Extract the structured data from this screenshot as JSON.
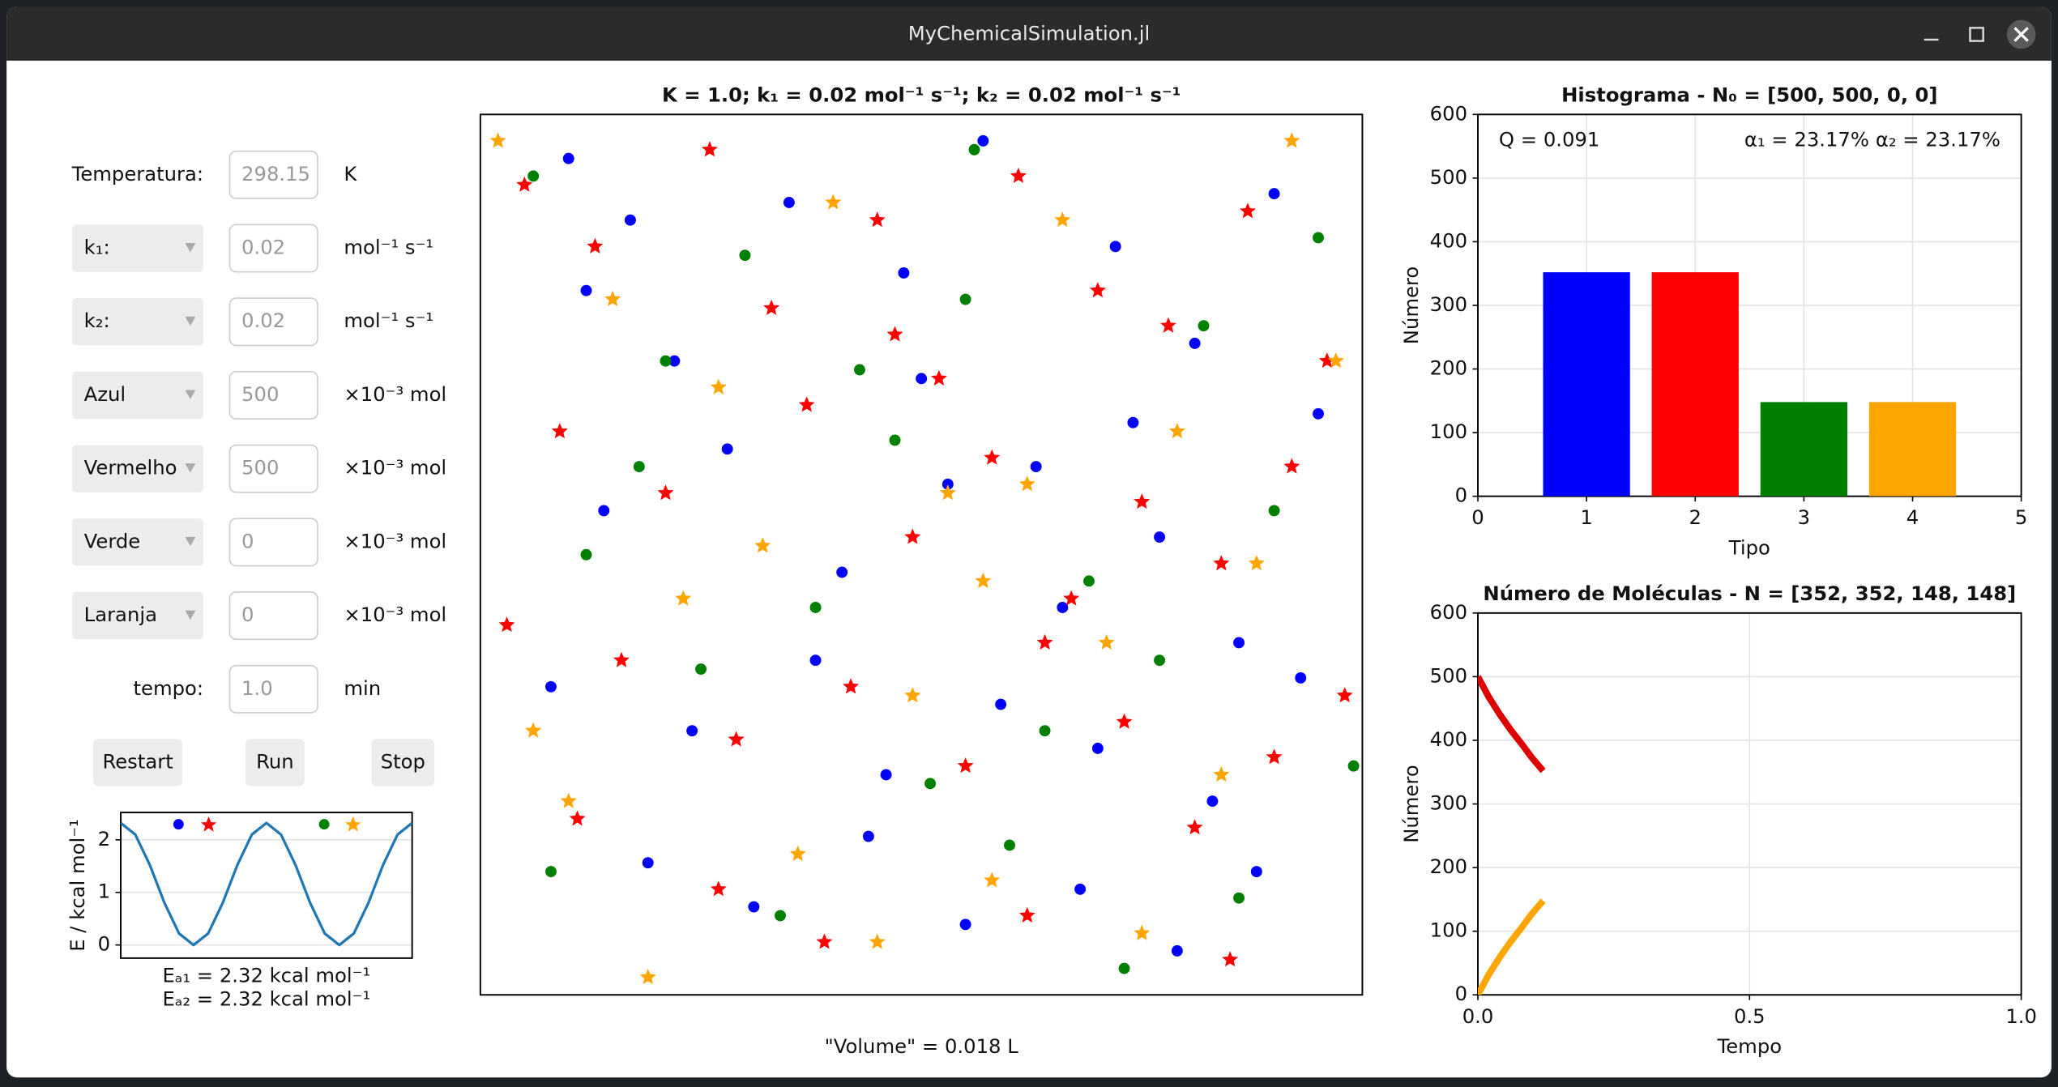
{
  "window": {
    "title": "MyChemicalSimulation.jl"
  },
  "controls": {
    "rows": [
      {
        "label": "Temperatura:",
        "value": "298.15",
        "unit": "K",
        "dropdown": false
      },
      {
        "label": "k₁:",
        "value": "0.02",
        "unit": "mol⁻¹ s⁻¹",
        "dropdown": true
      },
      {
        "label": "k₂:",
        "value": "0.02",
        "unit": "mol⁻¹ s⁻¹",
        "dropdown": true
      },
      {
        "label": "Azul",
        "value": "500",
        "unit": "×10⁻³ mol",
        "dropdown": true
      },
      {
        "label": "Vermelho",
        "value": "500",
        "unit": "×10⁻³ mol",
        "dropdown": true
      },
      {
        "label": "Verde",
        "value": "0",
        "unit": "×10⁻³ mol",
        "dropdown": true
      },
      {
        "label": "Laranja",
        "value": "0",
        "unit": "×10⁻³ mol",
        "dropdown": true
      },
      {
        "label": "tempo:",
        "value": "1.0",
        "unit": "min",
        "dropdown": false
      }
    ],
    "buttons": [
      "Restart",
      "Run",
      "Stop"
    ]
  },
  "chart_data": [
    {
      "type": "line",
      "ylabel": "E / kcal mol⁻¹",
      "color": "#1f77b4",
      "x": [
        -1.0,
        -0.8,
        -0.6,
        -0.4,
        -0.2,
        0,
        0.2,
        0.4,
        0.6,
        0.8,
        1.0,
        1.2,
        1.4,
        1.6,
        1.8,
        2.0,
        2.2,
        2.4,
        2.6,
        2.8,
        3.0
      ],
      "values": [
        2.32,
        2.1,
        1.52,
        0.8,
        0.22,
        0,
        0.22,
        0.8,
        1.52,
        2.1,
        2.32,
        2.1,
        1.52,
        0.8,
        0.22,
        0,
        0.22,
        0.8,
        1.52,
        2.1,
        2.32
      ],
      "xlim": [
        -1,
        3
      ],
      "ylim": [
        -0.25,
        2.52
      ],
      "yticks": [
        0,
        1,
        2
      ],
      "grid": true,
      "annotations": [
        "Eₐ₁ = 2.32 kcal mol⁻¹",
        "Eₐ₂ = 2.32 kcal mol⁻¹"
      ]
    },
    {
      "type": "scatter",
      "title": "K = 1.0; k₁ = 0.02 mol⁻¹ s⁻¹; k₂ = 0.02 mol⁻¹ s⁻¹",
      "xlabel": "\"Volume\" = 0.018 L",
      "xlim": [
        0,
        100
      ],
      "ylim": [
        0,
        100
      ],
      "series": [
        {
          "color": "#0000ff",
          "marker": "circle",
          "x": [
            10,
            17,
            22,
            35,
            48,
            57,
            63,
            72,
            81,
            90,
            95,
            14,
            28,
            41,
            53,
            66,
            77,
            86,
            8,
            24,
            38,
            46,
            59,
            70,
            83,
            93,
            19,
            31,
            44,
            55,
            68,
            79,
            88,
            12,
            50,
            74
          ],
          "y": [
            95,
            88,
            72,
            90,
            82,
            97,
            60,
            85,
            74,
            91,
            66,
            55,
            62,
            48,
            58,
            44,
            52,
            40,
            35,
            30,
            38,
            25,
            33,
            28,
            22,
            36,
            15,
            10,
            18,
            8,
            12,
            5,
            14,
            80,
            70,
            65
          ]
        },
        {
          "color": "#ff0000",
          "marker": "star",
          "x": [
            5,
            13,
            26,
            33,
            45,
            52,
            61,
            70,
            78,
            87,
            96,
            9,
            21,
            37,
            49,
            58,
            67,
            75,
            84,
            92,
            3,
            16,
            29,
            42,
            55,
            64,
            73,
            81,
            90,
            98,
            11,
            27,
            39,
            62,
            85,
            47
          ],
          "y": [
            92,
            85,
            96,
            78,
            88,
            70,
            93,
            80,
            76,
            89,
            72,
            64,
            57,
            67,
            52,
            61,
            45,
            56,
            49,
            60,
            42,
            38,
            29,
            35,
            26,
            40,
            31,
            19,
            27,
            34,
            20,
            12,
            6,
            9,
            4,
            75
          ]
        },
        {
          "color": "#008000",
          "marker": "circle",
          "x": [
            6,
            18,
            30,
            43,
            56,
            69,
            82,
            95,
            12,
            25,
            38,
            51,
            64,
            77,
            90,
            8,
            34,
            60,
            86,
            47,
            73,
            21,
            99,
            55
          ],
          "y": [
            93,
            60,
            84,
            71,
            96,
            47,
            76,
            86,
            50,
            37,
            44,
            24,
            30,
            38,
            55,
            14,
            9,
            17,
            11,
            63,
            3,
            72,
            26,
            79
          ]
        },
        {
          "color": "#ffa500",
          "marker": "star",
          "x": [
            2,
            15,
            27,
            40,
            53,
            66,
            79,
            92,
            10,
            23,
            36,
            49,
            62,
            75,
            88,
            6,
            32,
            58,
            84,
            45,
            71,
            19,
            97,
            57
          ],
          "y": [
            97,
            79,
            69,
            90,
            57,
            88,
            64,
            97,
            22,
            45,
            16,
            34,
            58,
            7,
            49,
            30,
            51,
            13,
            25,
            6,
            40,
            2,
            72,
            47
          ]
        }
      ]
    },
    {
      "type": "bar",
      "title": "Histograma - N₀ = [500, 500, 0, 0]",
      "xlabel": "Tipo",
      "ylabel": "Número",
      "x": [
        1,
        2,
        3,
        4
      ],
      "values": [
        352,
        352,
        148,
        148
      ],
      "colors": [
        "#0000ff",
        "#ff0000",
        "#008000",
        "#ffa500"
      ],
      "xlim": [
        0,
        5
      ],
      "xticks": [
        0,
        1,
        2,
        3,
        4,
        5
      ],
      "ylim": [
        0,
        600
      ],
      "yticks": [
        0,
        100,
        200,
        300,
        400,
        500,
        600
      ],
      "grid": true,
      "annotations": [
        "Q = 0.091",
        "α₁ = 23.17%",
        "α₂ = 23.17%"
      ]
    },
    {
      "type": "line",
      "title": "Número de Moléculas - N = [352, 352, 148, 148]",
      "xlabel": "Tempo",
      "ylabel": "Número",
      "xlim": [
        0,
        1
      ],
      "xticks": [
        {
          "value": 0,
          "label": "0.0"
        },
        {
          "value": 0.5,
          "label": "0.5"
        },
        {
          "value": 1,
          "label": "1.0"
        }
      ],
      "ylim": [
        0,
        600
      ],
      "yticks": [
        0,
        100,
        200,
        300,
        400,
        500,
        600
      ],
      "grid": true,
      "series": [
        {
          "color": "#dd0000",
          "x": [
            0,
            0.02,
            0.04,
            0.06,
            0.08,
            0.1,
            0.12
          ],
          "values": [
            500,
            468,
            441,
            417,
            395,
            372,
            352
          ]
        },
        {
          "color": "#ffa500",
          "x": [
            0,
            0.02,
            0.04,
            0.06,
            0.08,
            0.1,
            0.12
          ],
          "values": [
            0,
            32,
            59,
            83,
            105,
            128,
            148
          ]
        }
      ]
    }
  ]
}
